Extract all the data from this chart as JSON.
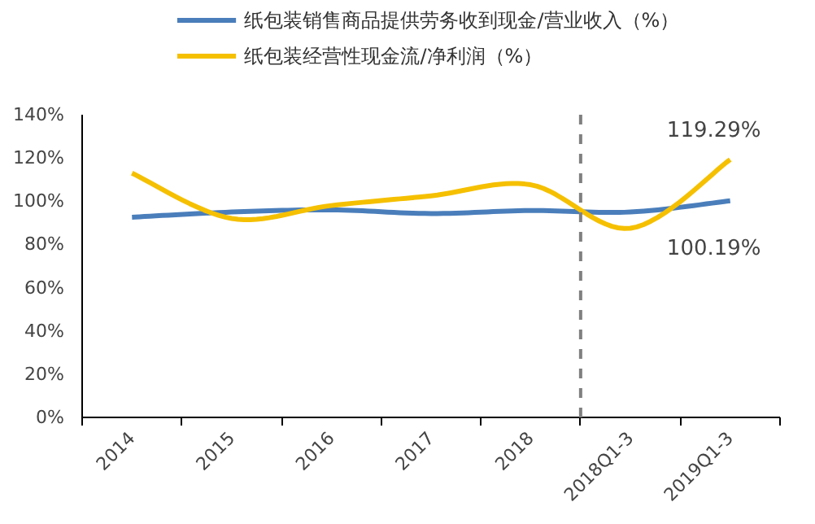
{
  "chart_data": {
    "type": "line",
    "categories": [
      "2014",
      "2015",
      "2016",
      "2017",
      "2018",
      "2018Q1-3",
      "2019Q1-3"
    ],
    "series": [
      {
        "name": "纸包装销售商品提供劳务收到现金/营业收入（%）",
        "color": "#4a7ebb",
        "values": [
          92.6,
          95,
          96,
          94.3,
          95.7,
          95,
          100.19
        ],
        "value_labels": [
          null,
          null,
          null,
          null,
          null,
          null,
          "100.19%"
        ]
      },
      {
        "name": "纸包装经营性现金流/净利润（%）",
        "color": "#f5c000",
        "values": [
          113,
          92,
          98,
          102.5,
          107.6,
          87.5,
          119.29
        ],
        "value_labels": [
          null,
          null,
          null,
          null,
          null,
          null,
          "119.29%"
        ]
      }
    ],
    "ylim": [
      0,
      140
    ],
    "yticks": [
      {
        "value": 0,
        "label": "0%"
      },
      {
        "value": 20,
        "label": "20%"
      },
      {
        "value": 40,
        "label": "40%"
      },
      {
        "value": 60,
        "label": "60%"
      },
      {
        "value": 80,
        "label": "80%"
      },
      {
        "value": 100,
        "label": "100%"
      },
      {
        "value": 120,
        "label": "120%"
      },
      {
        "value": 140,
        "label": "140%"
      }
    ],
    "grid": false,
    "legend": "top",
    "marker": "none",
    "line_style": "solid"
  }
}
